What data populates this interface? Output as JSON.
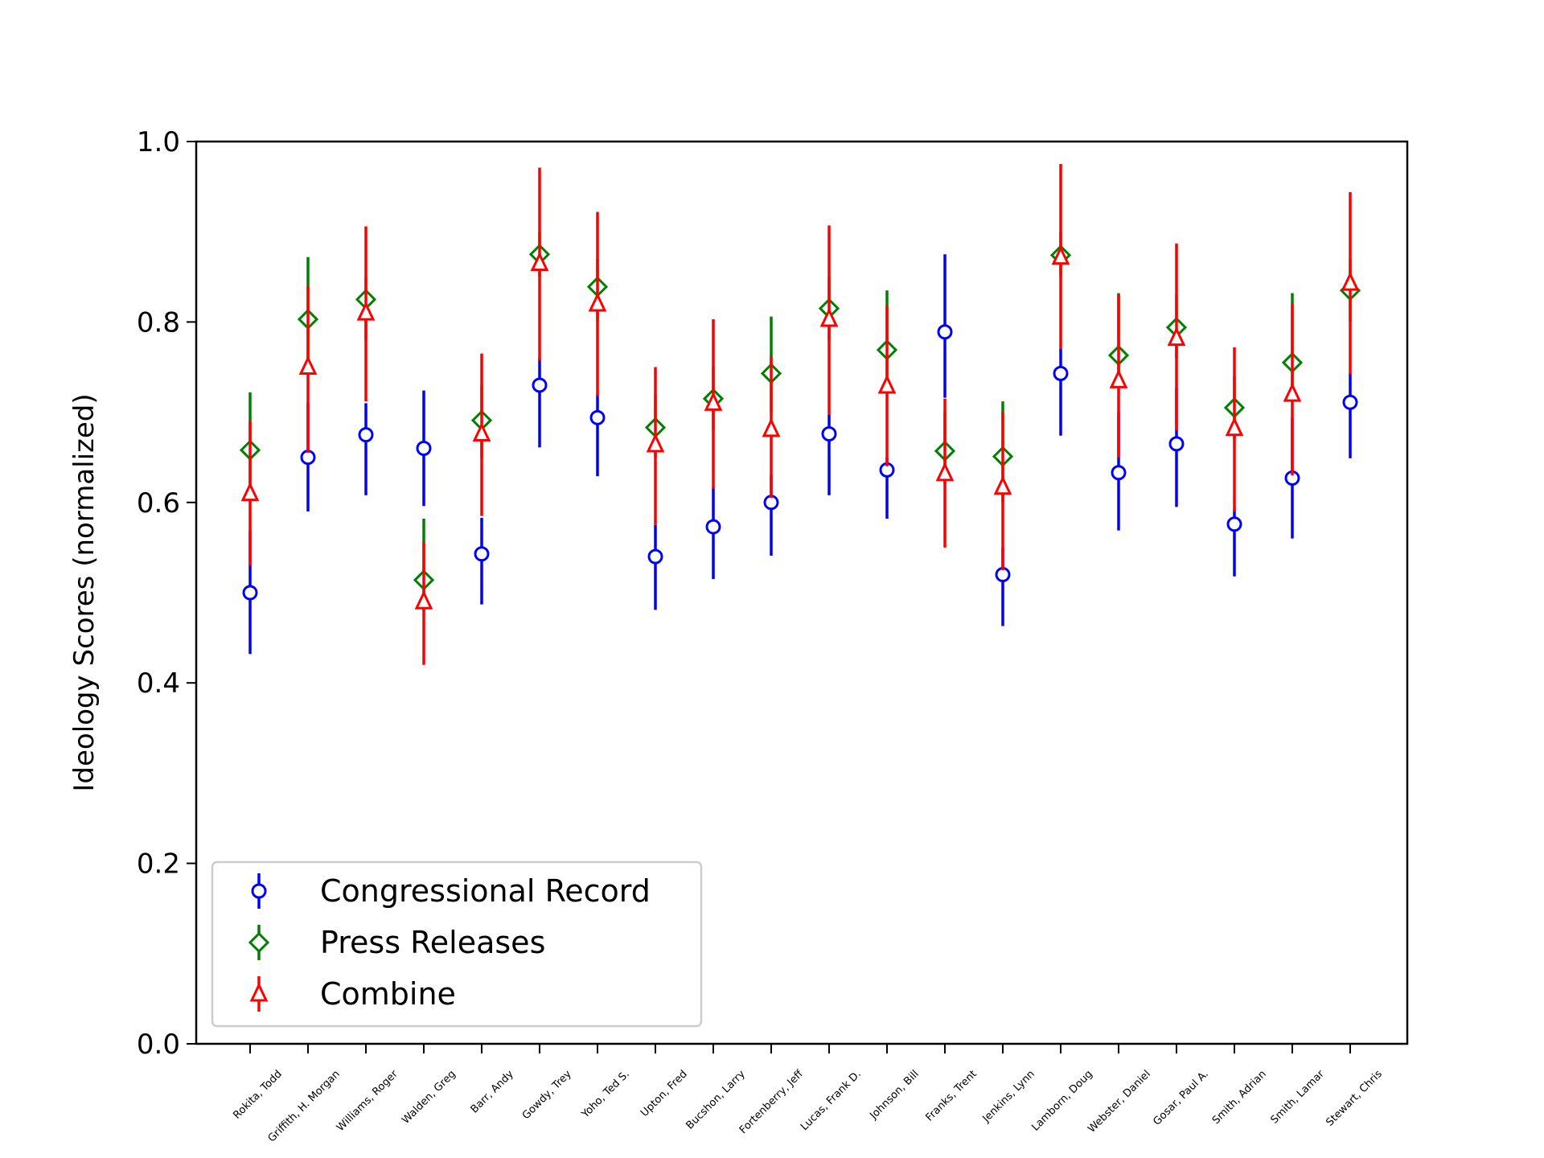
{
  "chart_data": {
    "type": "scatter",
    "ylabel": "Ideology Scores (normalized)",
    "xlabel": "",
    "ylim": [
      0,
      1
    ],
    "yticks": [
      "0.0",
      "0.2",
      "0.4",
      "0.6",
      "0.8",
      "1.0"
    ],
    "legend_position": "lower-left",
    "categories": [
      "Rokita, Todd",
      "Griffith, H. Morgan",
      "Williams, Roger",
      "Walden, Greg",
      "Barr, Andy",
      "Gowdy, Trey",
      "Yoho, Ted S.",
      "Upton, Fred",
      "Bucshon, Larry",
      "Fortenberry, Jeff",
      "Lucas, Frank D.",
      "Johnson, Bill",
      "Franks, Trent",
      "Jenkins, Lynn",
      "Lamborn, Doug",
      "Webster, Daniel",
      "Gosar, Paul A.",
      "Smith, Adrian",
      "Smith, Lamar",
      "Stewart, Chris"
    ],
    "series": [
      {
        "name": "Congressional Record",
        "color": "#0000ff",
        "marker": "circle",
        "values": [
          0.5,
          0.65,
          0.675,
          0.66,
          0.543,
          0.73,
          0.694,
          0.54,
          0.573,
          0.6,
          0.676,
          0.636,
          0.789,
          0.52,
          0.743,
          0.633,
          0.665,
          0.576,
          0.627,
          0.711
        ],
        "lower": [
          0.432,
          0.59,
          0.608,
          0.596,
          0.487,
          0.661,
          0.629,
          0.481,
          0.515,
          0.541,
          0.608,
          0.582,
          0.716,
          0.463,
          0.674,
          0.569,
          0.595,
          0.518,
          0.56,
          0.649
        ],
        "upper": [
          0.569,
          0.71,
          0.71,
          0.724,
          0.583,
          0.76,
          0.72,
          0.575,
          0.617,
          0.63,
          0.697,
          0.65,
          0.875,
          0.55,
          0.77,
          0.7,
          0.727,
          0.593,
          0.694,
          0.743
        ]
      },
      {
        "name": "Press Releases",
        "color": "#008000",
        "marker": "diamond",
        "values": [
          0.658,
          0.803,
          0.825,
          0.514,
          0.691,
          0.875,
          0.839,
          0.683,
          0.715,
          0.743,
          0.815,
          0.769,
          0.657,
          0.651,
          0.874,
          0.763,
          0.794,
          0.705,
          0.755,
          0.835
        ],
        "lower": [
          0.6,
          0.75,
          0.78,
          0.48,
          0.65,
          0.85,
          0.8,
          0.65,
          0.68,
          0.7,
          0.78,
          0.73,
          0.62,
          0.6,
          0.85,
          0.73,
          0.76,
          0.67,
          0.72,
          0.8
        ],
        "upper": [
          0.722,
          0.872,
          0.85,
          0.582,
          0.73,
          0.9,
          0.87,
          0.72,
          0.75,
          0.806,
          0.85,
          0.835,
          0.7,
          0.712,
          0.9,
          0.832,
          0.83,
          0.74,
          0.832,
          0.87
        ]
      },
      {
        "name": "Combine",
        "color": "#ff0000",
        "marker": "triangle",
        "values": [
          0.61,
          0.75,
          0.81,
          0.49,
          0.676,
          0.865,
          0.82,
          0.664,
          0.71,
          0.681,
          0.803,
          0.729,
          0.632,
          0.617,
          0.872,
          0.735,
          0.782,
          0.682,
          0.72,
          0.843
        ],
        "lower": [
          0.53,
          0.655,
          0.712,
          0.42,
          0.585,
          0.757,
          0.718,
          0.575,
          0.615,
          0.605,
          0.697,
          0.64,
          0.55,
          0.525,
          0.77,
          0.65,
          0.68,
          0.59,
          0.63,
          0.742
        ],
        "upper": [
          0.69,
          0.84,
          0.906,
          0.556,
          0.765,
          0.971,
          0.922,
          0.75,
          0.803,
          0.762,
          0.907,
          0.818,
          0.715,
          0.7,
          0.975,
          0.83,
          0.887,
          0.772,
          0.82,
          0.944
        ]
      }
    ]
  }
}
